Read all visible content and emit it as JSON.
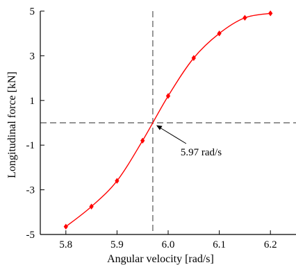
{
  "chart_data": {
    "type": "line",
    "title": "",
    "xlabel": "Angular velocity [rad/s]",
    "ylabel": "Longitudinal force [kN]",
    "xlim": [
      5.75,
      6.25
    ],
    "ylim": [
      -5,
      5
    ],
    "x_ticks": [
      5.8,
      5.9,
      6.0,
      6.1,
      6.2
    ],
    "x_tick_labels": [
      "5.8",
      "5.9",
      "6.0",
      "6.1",
      "6.2"
    ],
    "y_ticks": [
      -5,
      -3,
      -1,
      1,
      3,
      5
    ],
    "y_tick_labels": [
      "-5",
      "-3",
      "-1",
      "1",
      "3",
      "5"
    ],
    "grid": false,
    "series": [
      {
        "x": [
          5.8,
          5.85,
          5.9,
          5.95,
          6.0,
          6.05,
          6.1,
          6.15,
          6.2
        ],
        "y": [
          -4.65,
          -3.75,
          -2.6,
          -0.8,
          1.2,
          2.9,
          4.0,
          4.7,
          4.9
        ],
        "color": "#ff0000",
        "marker": "diamond"
      }
    ],
    "reference_lines": {
      "vertical_x": 5.97,
      "horizontal_y": 0,
      "style": "dashed",
      "color": "#555555"
    },
    "annotation": {
      "text": "5.97 rad/s",
      "point": [
        5.97,
        0
      ]
    }
  }
}
